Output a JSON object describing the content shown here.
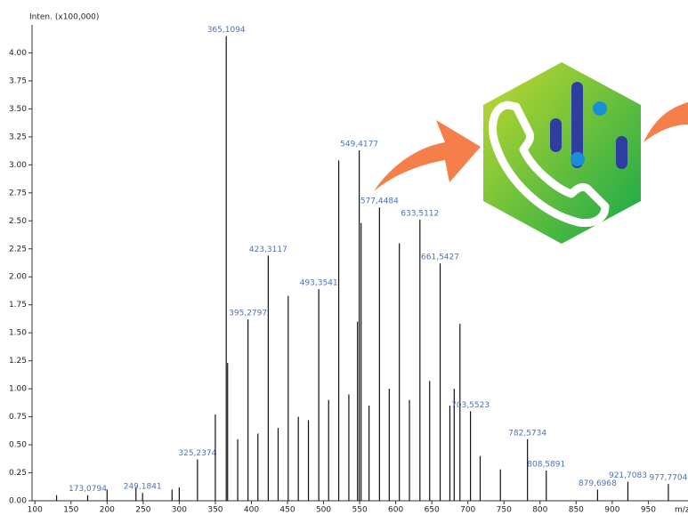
{
  "chart_data": {
    "type": "bar",
    "y_label": "Inten. (x100,000)",
    "x_label": "m/z",
    "x": [
      130,
      173.0794,
      200,
      240,
      249.1841,
      290,
      300,
      325.2374,
      350,
      365.1094,
      367,
      381,
      395.2797,
      409,
      423.3117,
      437,
      451,
      465,
      479,
      493.3541,
      507,
      521,
      535,
      547,
      549.4177,
      552,
      563,
      577.4484,
      591,
      605,
      619,
      633.5112,
      647,
      661.5427,
      675,
      681,
      689,
      703.5523,
      717,
      745,
      782.5734,
      808.5891,
      879.6968,
      921.7083,
      977.7704
    ],
    "values": [
      0.05,
      0.05,
      0.1,
      0.12,
      0.07,
      0.1,
      0.12,
      0.37,
      0.77,
      4.15,
      1.23,
      0.55,
      1.62,
      0.6,
      2.19,
      0.65,
      1.83,
      0.75,
      0.72,
      1.89,
      0.9,
      3.04,
      0.95,
      1.6,
      3.13,
      2.48,
      0.85,
      2.62,
      1.0,
      2.3,
      0.9,
      2.51,
      1.07,
      2.12,
      0.85,
      1.0,
      1.58,
      0.8,
      0.4,
      0.28,
      0.55,
      0.27,
      0.1,
      0.17,
      0.15
    ],
    "x_labels": [
      null,
      "173,0794",
      null,
      null,
      "249,1841",
      null,
      null,
      "325,2374",
      null,
      "365,1094",
      null,
      null,
      "395,2797",
      null,
      "423,3117",
      null,
      null,
      null,
      null,
      "493,3541",
      null,
      null,
      null,
      null,
      "549,4177",
      null,
      null,
      "577,4484",
      null,
      null,
      null,
      "633,5112",
      null,
      "661,5427",
      null,
      null,
      null,
      "703,5523",
      null,
      null,
      "782,5734",
      "808,5891",
      "879,6968",
      "921,7083",
      "977,7704"
    ],
    "color": "#111111",
    "label_color": "#4a72b8",
    "xlim": [
      96,
      1005
    ],
    "ylim": [
      0,
      4.25
    ],
    "xticks": [
      100,
      150,
      200,
      250,
      300,
      350,
      400,
      450,
      500,
      550,
      600,
      650,
      700,
      750,
      800,
      850,
      900,
      950
    ],
    "yticks": [
      {
        "value": 0,
        "label": "0.00"
      },
      {
        "value": 0.25,
        "label": "0.25"
      },
      {
        "value": 0.5,
        "label": "0.50"
      },
      {
        "value": 0.75,
        "label": "0.75"
      },
      {
        "value": 1,
        "label": "1.00"
      },
      {
        "value": 1.25,
        "label": "1.25"
      },
      {
        "value": 1.5,
        "label": "1.50"
      },
      {
        "value": 1.75,
        "label": "1.75"
      },
      {
        "value": 2,
        "label": "2.00"
      },
      {
        "value": 2.25,
        "label": "2.25"
      },
      {
        "value": 2.5,
        "label": "2.50"
      },
      {
        "value": 2.75,
        "label": "2.75"
      },
      {
        "value": 3,
        "label": "3.00"
      },
      {
        "value": 3.25,
        "label": "3.25"
      },
      {
        "value": 3.5,
        "label": "3.50"
      },
      {
        "value": 3.75,
        "label": "3.75"
      },
      {
        "value": 4,
        "label": "4.00"
      }
    ]
  }
}
